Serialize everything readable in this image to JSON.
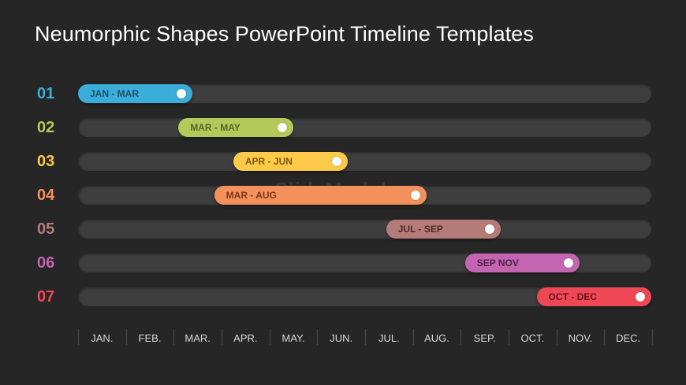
{
  "title": "Neumorphic Shapes PowerPoint Timeline Templates",
  "watermark": "SlideModel",
  "months": [
    "JAN.",
    "FEB.",
    "MAR.",
    "APR.",
    "MAY.",
    "JUN.",
    "JUL.",
    "AUG.",
    "SEP.",
    "OCT.",
    "NOV.",
    "DEC."
  ],
  "rows": [
    {
      "number": "01",
      "label": "JAN - MAR",
      "start": 0,
      "end": 2.4,
      "color": "#3aaed8",
      "text_color": "#1f4f66",
      "number_color": "#3aaed8"
    },
    {
      "number": "02",
      "label": "MAR - MAY",
      "start": 2.1,
      "end": 4.5,
      "color": "#b5c95a",
      "text_color": "#5a6428",
      "number_color": "#b5c95a"
    },
    {
      "number": "03",
      "label": "APR - JUN",
      "start": 3.25,
      "end": 5.65,
      "color": "#ffc94a",
      "text_color": "#7a5a10",
      "number_color": "#ffc94a"
    },
    {
      "number": "04",
      "label": "MAR - AUG",
      "start": 2.85,
      "end": 7.3,
      "color": "#f4905c",
      "text_color": "#7a3a18",
      "number_color": "#f4905c"
    },
    {
      "number": "05",
      "label": "JUL - SEP",
      "start": 6.45,
      "end": 8.85,
      "color": "#b57b78",
      "text_color": "#4e2a28",
      "number_color": "#b57b78"
    },
    {
      "number": "06",
      "label": "SEP NOV",
      "start": 8.1,
      "end": 10.5,
      "color": "#c365b0",
      "text_color": "#54204a",
      "number_color": "#c365b0"
    },
    {
      "number": "07",
      "label": "OCT - DEC",
      "start": 9.6,
      "end": 12,
      "color": "#ee4856",
      "text_color": "#6a121a",
      "number_color": "#ee4856"
    }
  ]
}
